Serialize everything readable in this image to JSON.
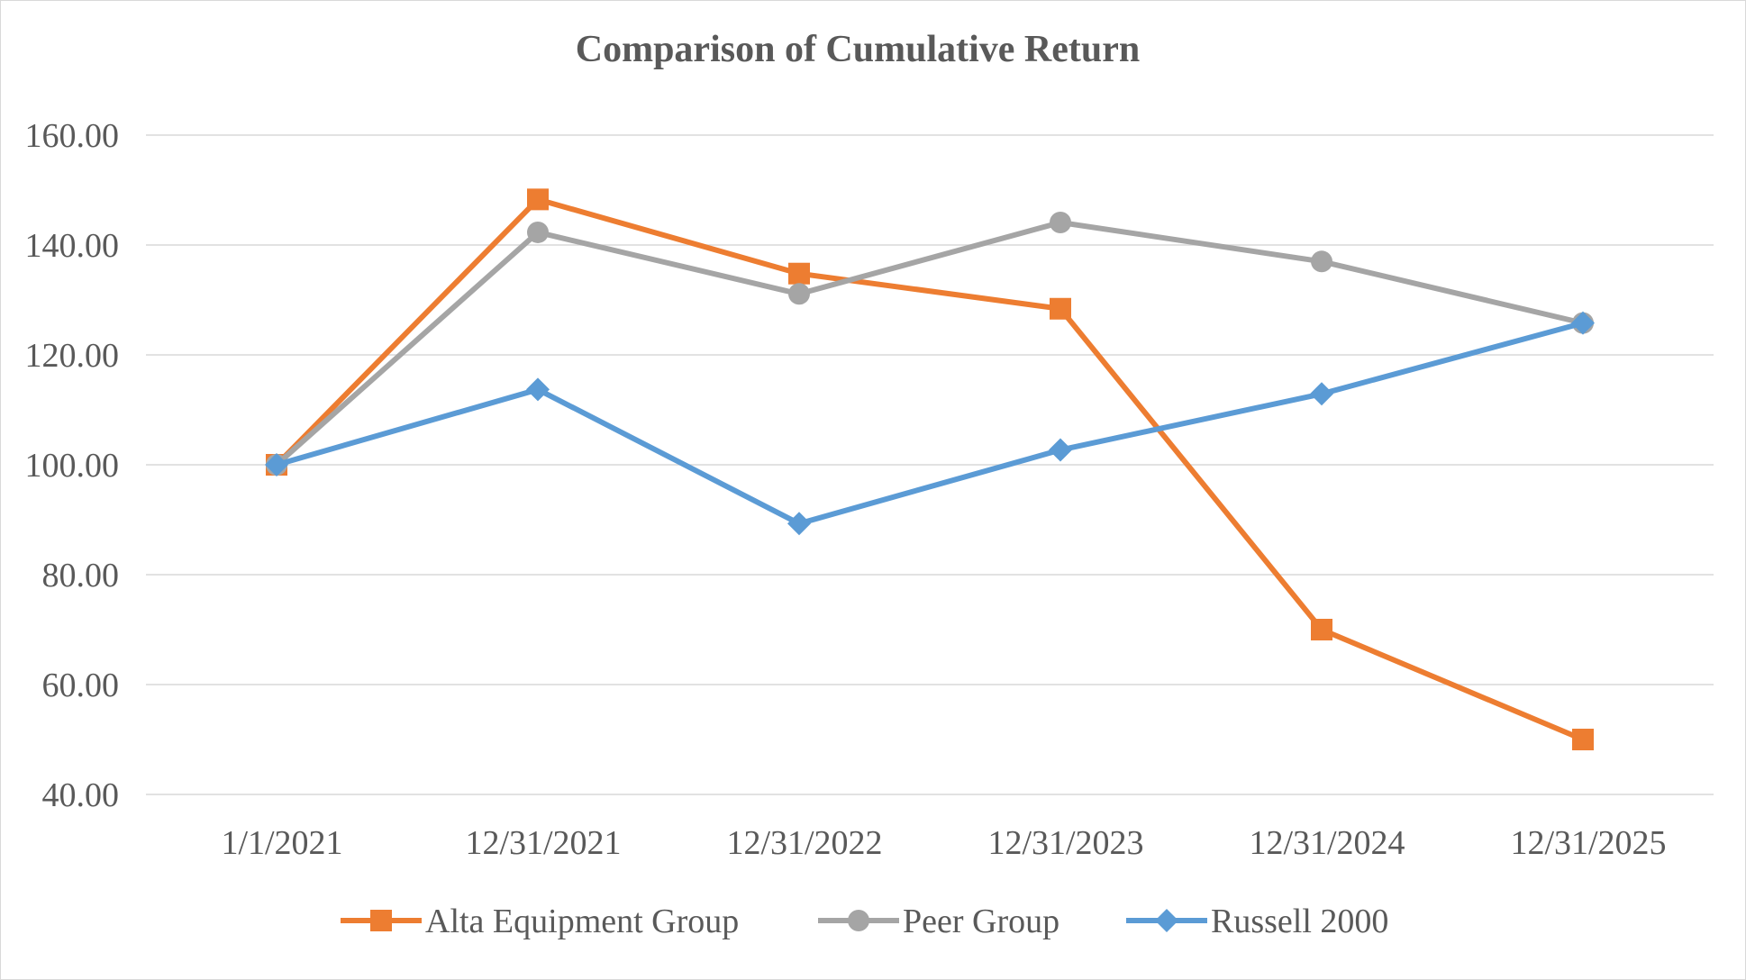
{
  "chart_data": {
    "type": "line",
    "title": "Comparison of Cumulative Return",
    "xlabel": "",
    "ylabel": "",
    "categories": [
      "1/1/2021",
      "12/31/2021",
      "12/31/2022",
      "12/31/2023",
      "12/31/2024",
      "12/31/2025"
    ],
    "y_ticks": [
      "160.00",
      "140.00",
      "120.00",
      "100.00",
      "80.00",
      "60.00",
      "40.00"
    ],
    "ylim": [
      40,
      160
    ],
    "grid": "horizontal",
    "legend_position": "bottom",
    "series": [
      {
        "name": "Alta Equipment Group",
        "marker": "square",
        "color": "#ed7d31",
        "values": [
          100.0,
          148.3,
          134.8,
          128.4,
          70.0,
          50.0
        ]
      },
      {
        "name": "Peer Group",
        "marker": "circle",
        "color": "#a5a5a5",
        "values": [
          100.0,
          142.3,
          131.1,
          144.1,
          137.0,
          125.8
        ]
      },
      {
        "name": "Russell 2000",
        "marker": "diamond",
        "color": "#5b9bd5",
        "values": [
          100.0,
          113.7,
          89.3,
          102.7,
          112.9,
          125.8
        ]
      }
    ]
  }
}
